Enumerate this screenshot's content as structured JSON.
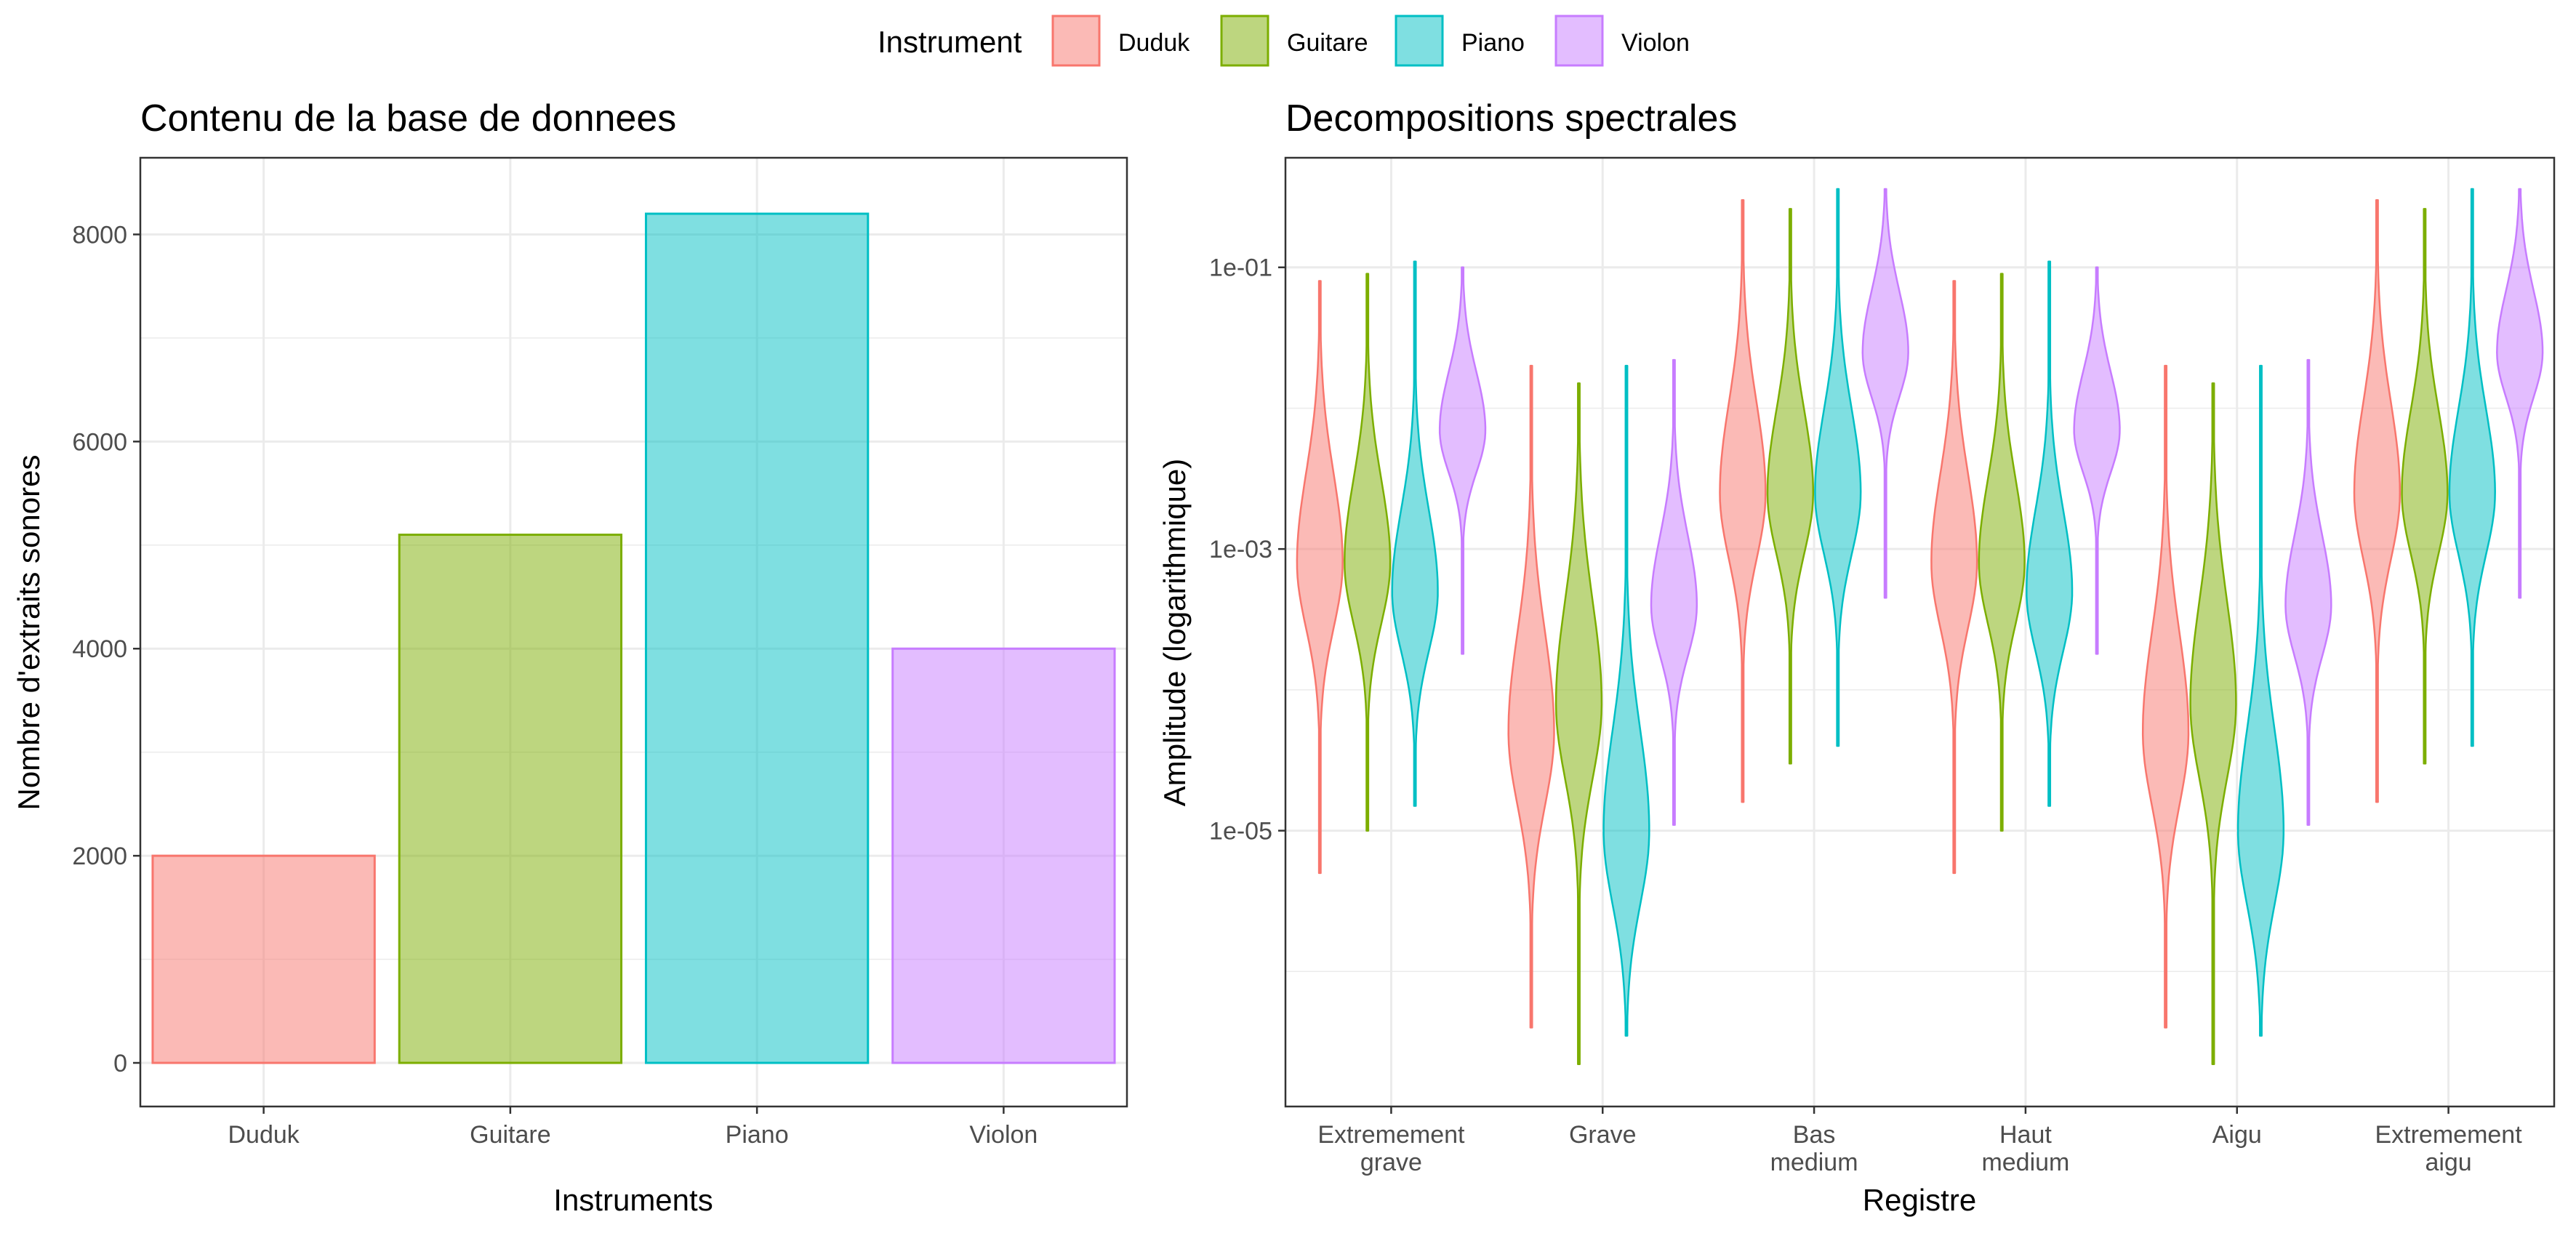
{
  "legend": {
    "title": "Instrument",
    "items": [
      {
        "label": "Duduk",
        "color": "#F8766D"
      },
      {
        "label": "Guitare",
        "color": "#7CAE00"
      },
      {
        "label": "Piano",
        "color": "#00BFC4"
      },
      {
        "label": "Violon",
        "color": "#C77CFF"
      }
    ]
  },
  "chart_data": [
    {
      "type": "bar",
      "title": "Contenu de la base de donnees",
      "xlabel": "Instruments",
      "ylabel": "Nombre d'extraits sonores",
      "categories": [
        "Duduk",
        "Guitare",
        "Piano",
        "Violon"
      ],
      "values": [
        2000,
        5100,
        8200,
        4000
      ],
      "ylim": [
        0,
        8600
      ],
      "yticks": [
        0,
        2000,
        4000,
        6000,
        8000
      ],
      "ytick_labels": [
        "0",
        "2000",
        "4000",
        "6000",
        "8000"
      ],
      "grid": true
    },
    {
      "type": "violin",
      "title": "Decompositions spectrales",
      "xlabel": "Registre",
      "ylabel": "Amplitude (logarithmique)",
      "yscale": "log",
      "ylim": [
        1.1e-07,
        0.6
      ],
      "yticks": [
        1e-05,
        0.001,
        0.1
      ],
      "ytick_labels": [
        "1e-05",
        "1e-03",
        "1e-01"
      ],
      "categories": [
        [
          "Extremement",
          "grave"
        ],
        [
          "Grave"
        ],
        [
          "Bas",
          "medium"
        ],
        [
          "Haut",
          "medium"
        ],
        [
          "Aigu"
        ],
        [
          "Extremement",
          "aigu"
        ]
      ],
      "series": [
        {
          "name": "Duduk",
          "min": [
            5e-06,
            4e-07,
            1.6e-05,
            5e-06,
            4e-07,
            1.6e-05
          ],
          "median": [
            0.0008,
            5e-05,
            0.0025,
            0.0008,
            5e-05,
            0.0025
          ],
          "max": [
            0.08,
            0.02,
            0.3,
            0.08,
            0.02,
            0.3
          ]
        },
        {
          "name": "Guitare",
          "min": [
            1e-05,
            2.2e-07,
            3e-05,
            1e-05,
            2.2e-07,
            3e-05
          ],
          "median": [
            0.0008,
            8e-05,
            0.0025,
            0.0008,
            8e-05,
            0.0025
          ],
          "max": [
            0.09,
            0.015,
            0.26,
            0.09,
            0.015,
            0.26
          ]
        },
        {
          "name": "Piano",
          "min": [
            1.5e-05,
            3.5e-07,
            4e-05,
            1.5e-05,
            3.5e-07,
            4e-05
          ],
          "median": [
            0.0005,
            1e-05,
            0.0025,
            0.0005,
            1e-05,
            0.0025
          ],
          "max": [
            0.11,
            0.02,
            0.36,
            0.11,
            0.02,
            0.36
          ]
        },
        {
          "name": "Violon",
          "min": [
            0.00018,
            1.1e-05,
            0.00045,
            0.00018,
            1.1e-05,
            0.00045
          ],
          "median": [
            0.007,
            0.0004,
            0.025,
            0.007,
            0.0004,
            0.025
          ],
          "max": [
            0.1,
            0.022,
            0.36,
            0.1,
            0.022,
            0.36
          ]
        }
      ],
      "grid": true
    }
  ]
}
